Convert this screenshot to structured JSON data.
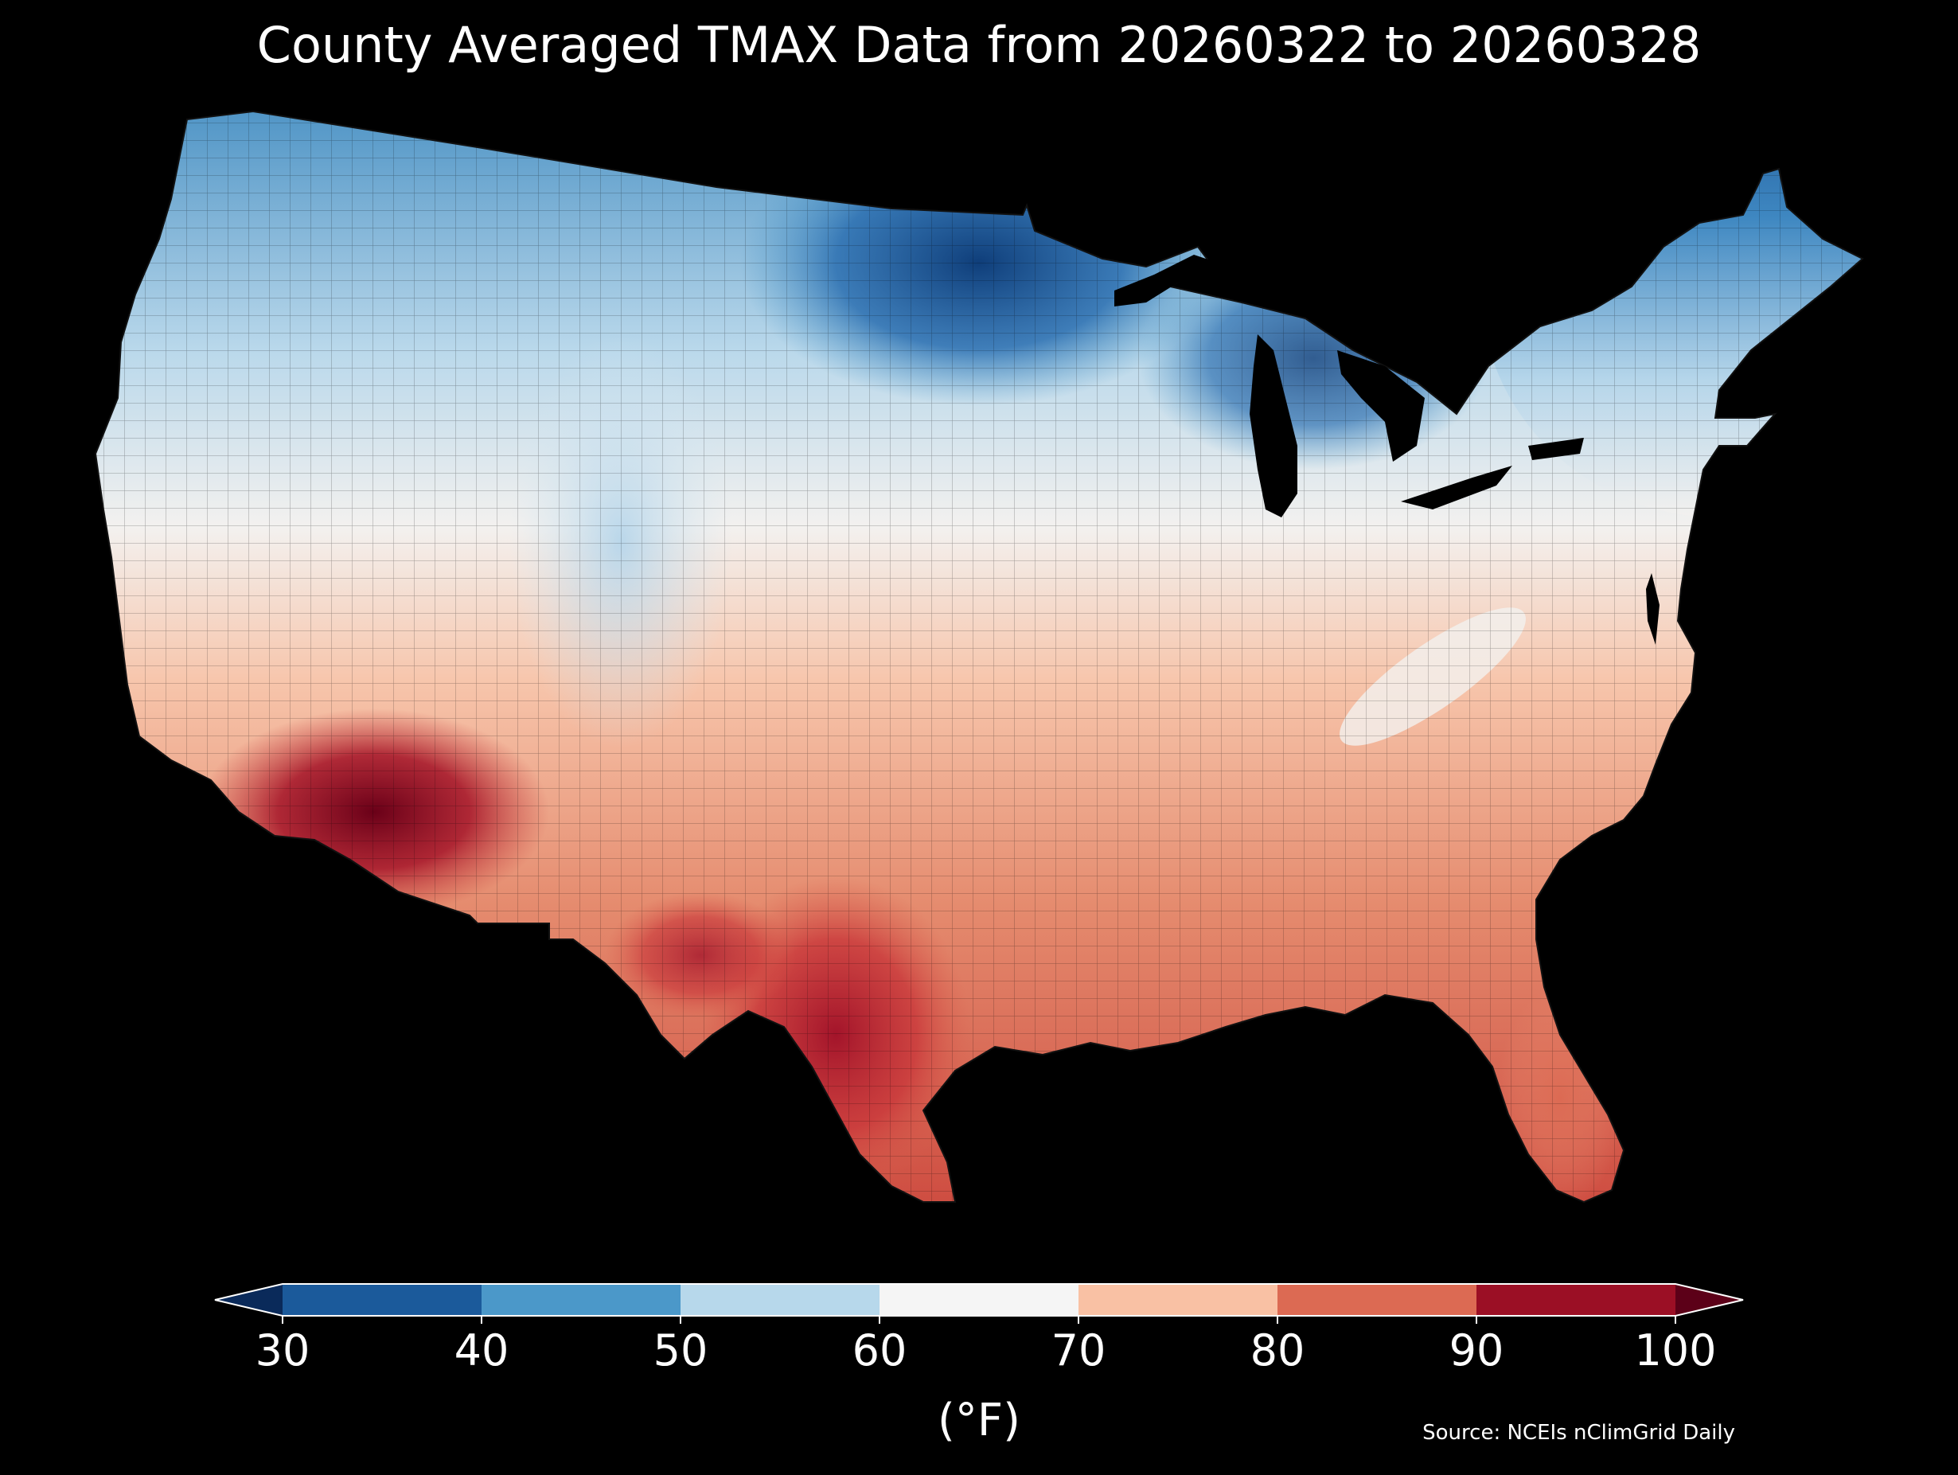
{
  "title": "County Averaged TMAX Data from 20260322 to 20260328",
  "colorbar": {
    "unit_label": "(°F)",
    "ticks": [
      "30",
      "40",
      "50",
      "60",
      "70",
      "80",
      "90",
      "100"
    ],
    "bins": [
      {
        "range": [
          30,
          40
        ],
        "color": "#1b5a9b"
      },
      {
        "range": [
          40,
          50
        ],
        "color": "#4b98c9"
      },
      {
        "range": [
          50,
          60
        ],
        "color": "#b7d8eb"
      },
      {
        "range": [
          60,
          70
        ],
        "color": "#f5f5f5"
      },
      {
        "range": [
          70,
          80
        ],
        "color": "#f9c1a4"
      },
      {
        "range": [
          80,
          90
        ],
        "color": "#dc6a53"
      },
      {
        "range": [
          90,
          100
        ],
        "color": "#9b0f25"
      }
    ],
    "under_color": "#0a2a5a",
    "over_color": "#5c0018"
  },
  "source": "Source: NCEIs nClimGrid Daily",
  "legend_colors": {
    "cold_extreme": "#0f3e7a",
    "cold": "#2f74b5",
    "cool": "#7db6d9",
    "mild": "#d6e8f2",
    "neutral": "#f3f1ef",
    "warm": "#f6b89b",
    "hot": "#e0785d",
    "very_hot": "#b2202c",
    "extreme": "#6a0018"
  }
}
